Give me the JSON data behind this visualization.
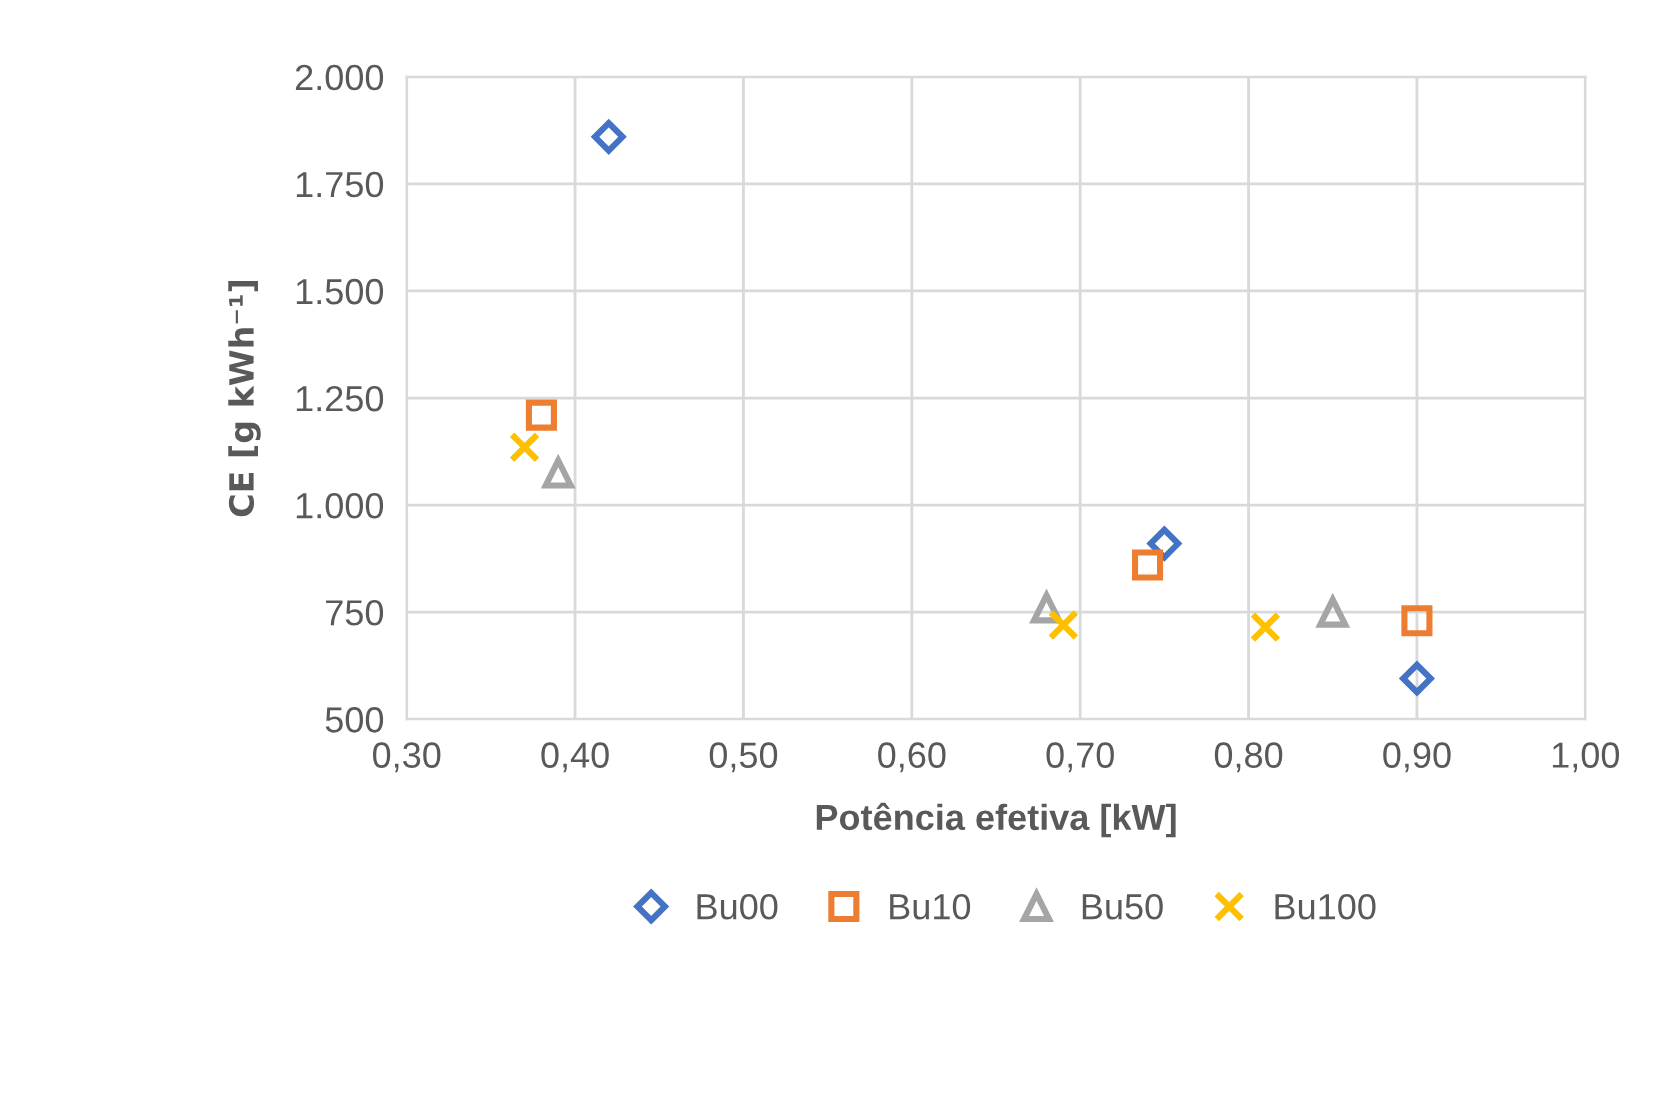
{
  "chart_data": {
    "type": "scatter",
    "xlabel": "Potência efetiva [kW]",
    "ylabel": "CE [g kWh⁻¹]",
    "xlim": [
      0.3,
      1.0
    ],
    "xticks": [
      {
        "value": 0.3,
        "label": "0,30"
      },
      {
        "value": 0.4,
        "label": "0,40"
      },
      {
        "value": 0.5,
        "label": "0,50"
      },
      {
        "value": 0.6,
        "label": "0,60"
      },
      {
        "value": 0.7,
        "label": "0,70"
      },
      {
        "value": 0.8,
        "label": "0,80"
      },
      {
        "value": 0.9,
        "label": "0,90"
      },
      {
        "value": 1.0,
        "label": "1,00"
      }
    ],
    "ylim": [
      500,
      2000
    ],
    "yticks": [
      500,
      750,
      {
        "value": 1000,
        "label": "1.000"
      },
      {
        "value": 1250,
        "label": "1.250"
      },
      {
        "value": 1500,
        "label": "1.500"
      },
      {
        "value": 1750,
        "label": "1.750"
      },
      {
        "value": 2000,
        "label": "2.000"
      }
    ],
    "grid": true,
    "legend": "bottom",
    "series": [
      {
        "name": "Bu00",
        "color": "#4472c4",
        "marker": "diamond",
        "x": [
          0.42,
          0.75,
          0.9
        ],
        "values": [
          1860,
          910,
          595
        ]
      },
      {
        "name": "Bu10",
        "color": "#ed7d31",
        "marker": "square",
        "x": [
          0.38,
          0.74,
          0.9
        ],
        "values": [
          1210,
          860,
          730
        ]
      },
      {
        "name": "Bu50",
        "color": "#a5a5a5",
        "marker": "triangle",
        "x": [
          0.39,
          0.68,
          0.85
        ],
        "values": [
          1075,
          760,
          750
        ]
      },
      {
        "name": "Bu100",
        "color": "#ffc000",
        "marker": "cross",
        "x": [
          0.37,
          0.69,
          0.81
        ],
        "values": [
          1135,
          720,
          715
        ]
      }
    ]
  }
}
